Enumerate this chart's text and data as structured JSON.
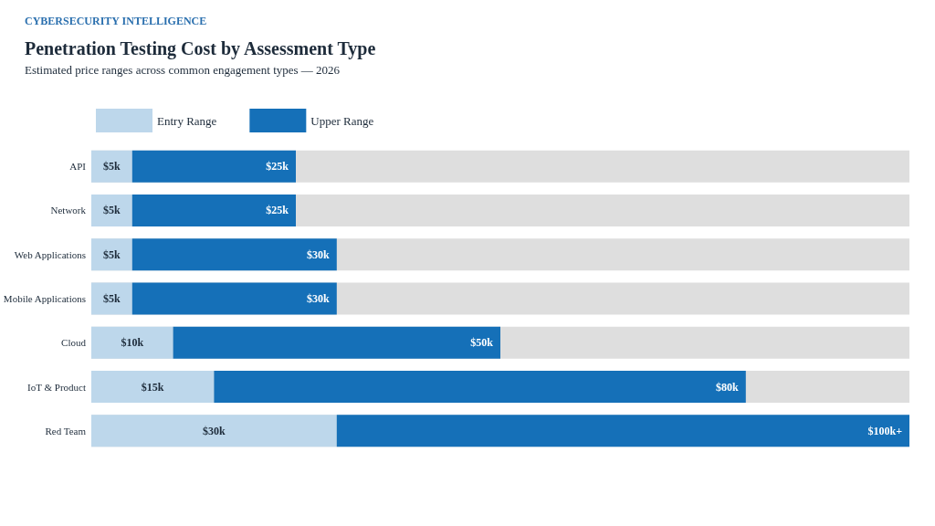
{
  "chart_data": {
    "type": "bar",
    "orientation": "horizontal",
    "stacked": true,
    "title": "Penetration Testing Cost by Assessment Type",
    "subtitle": "Estimated price ranges across common engagement types — 2026",
    "annotations": [
      "CYBERSECURITY INTELLIGENCE",
      {
        "text": "$25k",
        "x": 25,
        "y": "API"
      },
      {
        "text": "$25k",
        "x": 25,
        "y": "Network"
      },
      {
        "text": "$30k",
        "x": 30,
        "y": "Web Applications"
      },
      {
        "text": "$30k",
        "x": 30,
        "y": "Mobile Applications"
      },
      {
        "text": "$50k",
        "x": 50,
        "y": "Cloud"
      },
      {
        "text": "$80k",
        "x": 80,
        "y": "IoT & Product"
      },
      {
        "text": "$100k+",
        "x": 100,
        "y": "Red Team"
      }
    ],
    "categories": [
      "API",
      "Network",
      "Web Applications",
      "Mobile Applications",
      "Cloud",
      "IoT & Product",
      "Red Team"
    ],
    "series": [
      {
        "name": "Entry Range",
        "color": "#bdd7eb",
        "values": [
          5,
          5,
          5,
          5,
          10,
          15,
          30
        ],
        "value_labels": [
          "$5k",
          "$5k",
          "$5k",
          "$5k",
          "$10k",
          "$15k",
          "$30k"
        ]
      },
      {
        "name": "Upper Range",
        "color": "#1570b8",
        "values": [
          20,
          20,
          25,
          25,
          40,
          65,
          70
        ]
      }
    ],
    "xlim": [
      0,
      100
    ],
    "tick_labels": "y",
    "legend": "top left"
  }
}
